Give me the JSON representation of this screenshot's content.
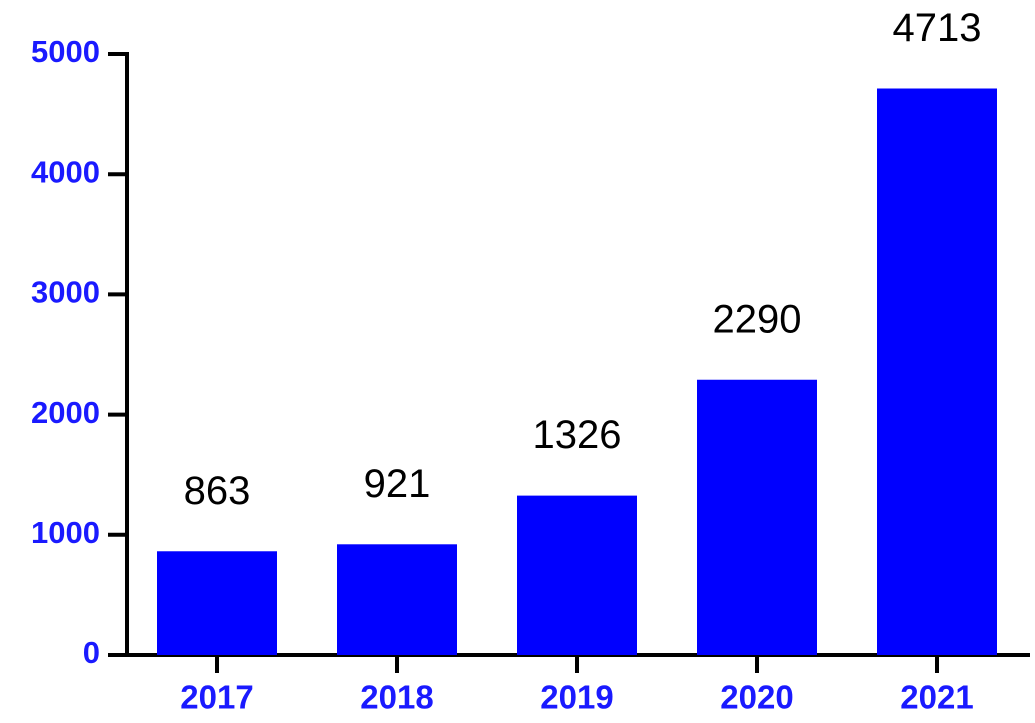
{
  "chart_data": {
    "type": "bar",
    "categories": [
      "2017",
      "2018",
      "2019",
      "2020",
      "2021"
    ],
    "values": [
      863,
      921,
      1326,
      2290,
      4713
    ],
    "color": "#0000ff",
    "ylim": [
      0,
      5000
    ],
    "yticks": [
      0,
      1000,
      2000,
      3000,
      4000,
      5000
    ],
    "grid": false
  }
}
